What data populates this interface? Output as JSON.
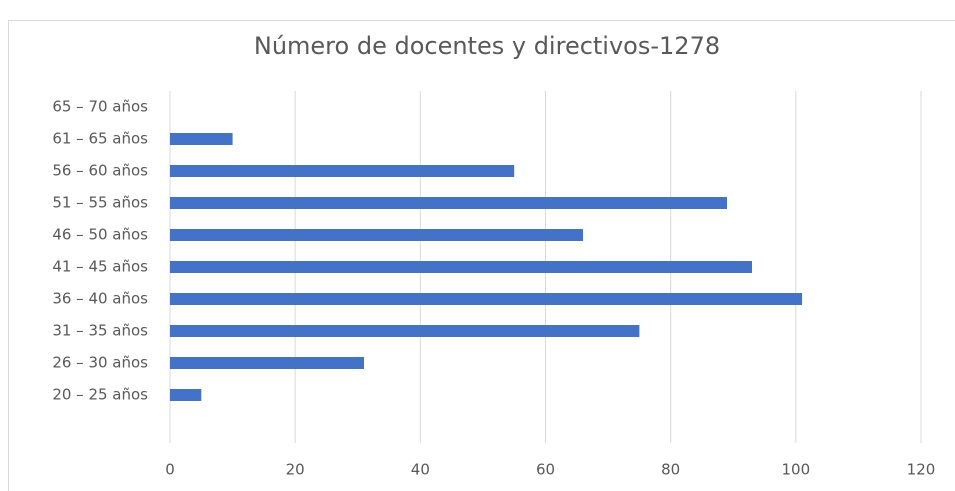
{
  "chart_data": {
    "type": "bar",
    "orientation": "horizontal",
    "title": "Número de docentes y directivos-1278",
    "categories": [
      null,
      "20 – 25 años",
      "26 – 30 años",
      "31 – 35 años",
      "36 – 40 años",
      "41 – 45 años",
      "46 – 50 años",
      "51 – 55 años",
      "56 – 60 años",
      "61 – 65 años",
      "65 – 70 años"
    ],
    "values": [
      null,
      5,
      31,
      75,
      101,
      93,
      66,
      89,
      55,
      10,
      0
    ],
    "color": "#4472c4",
    "xlim": [
      0,
      120
    ],
    "xticks": [
      0,
      20,
      40,
      60,
      80,
      100,
      120
    ],
    "grid": true
  }
}
